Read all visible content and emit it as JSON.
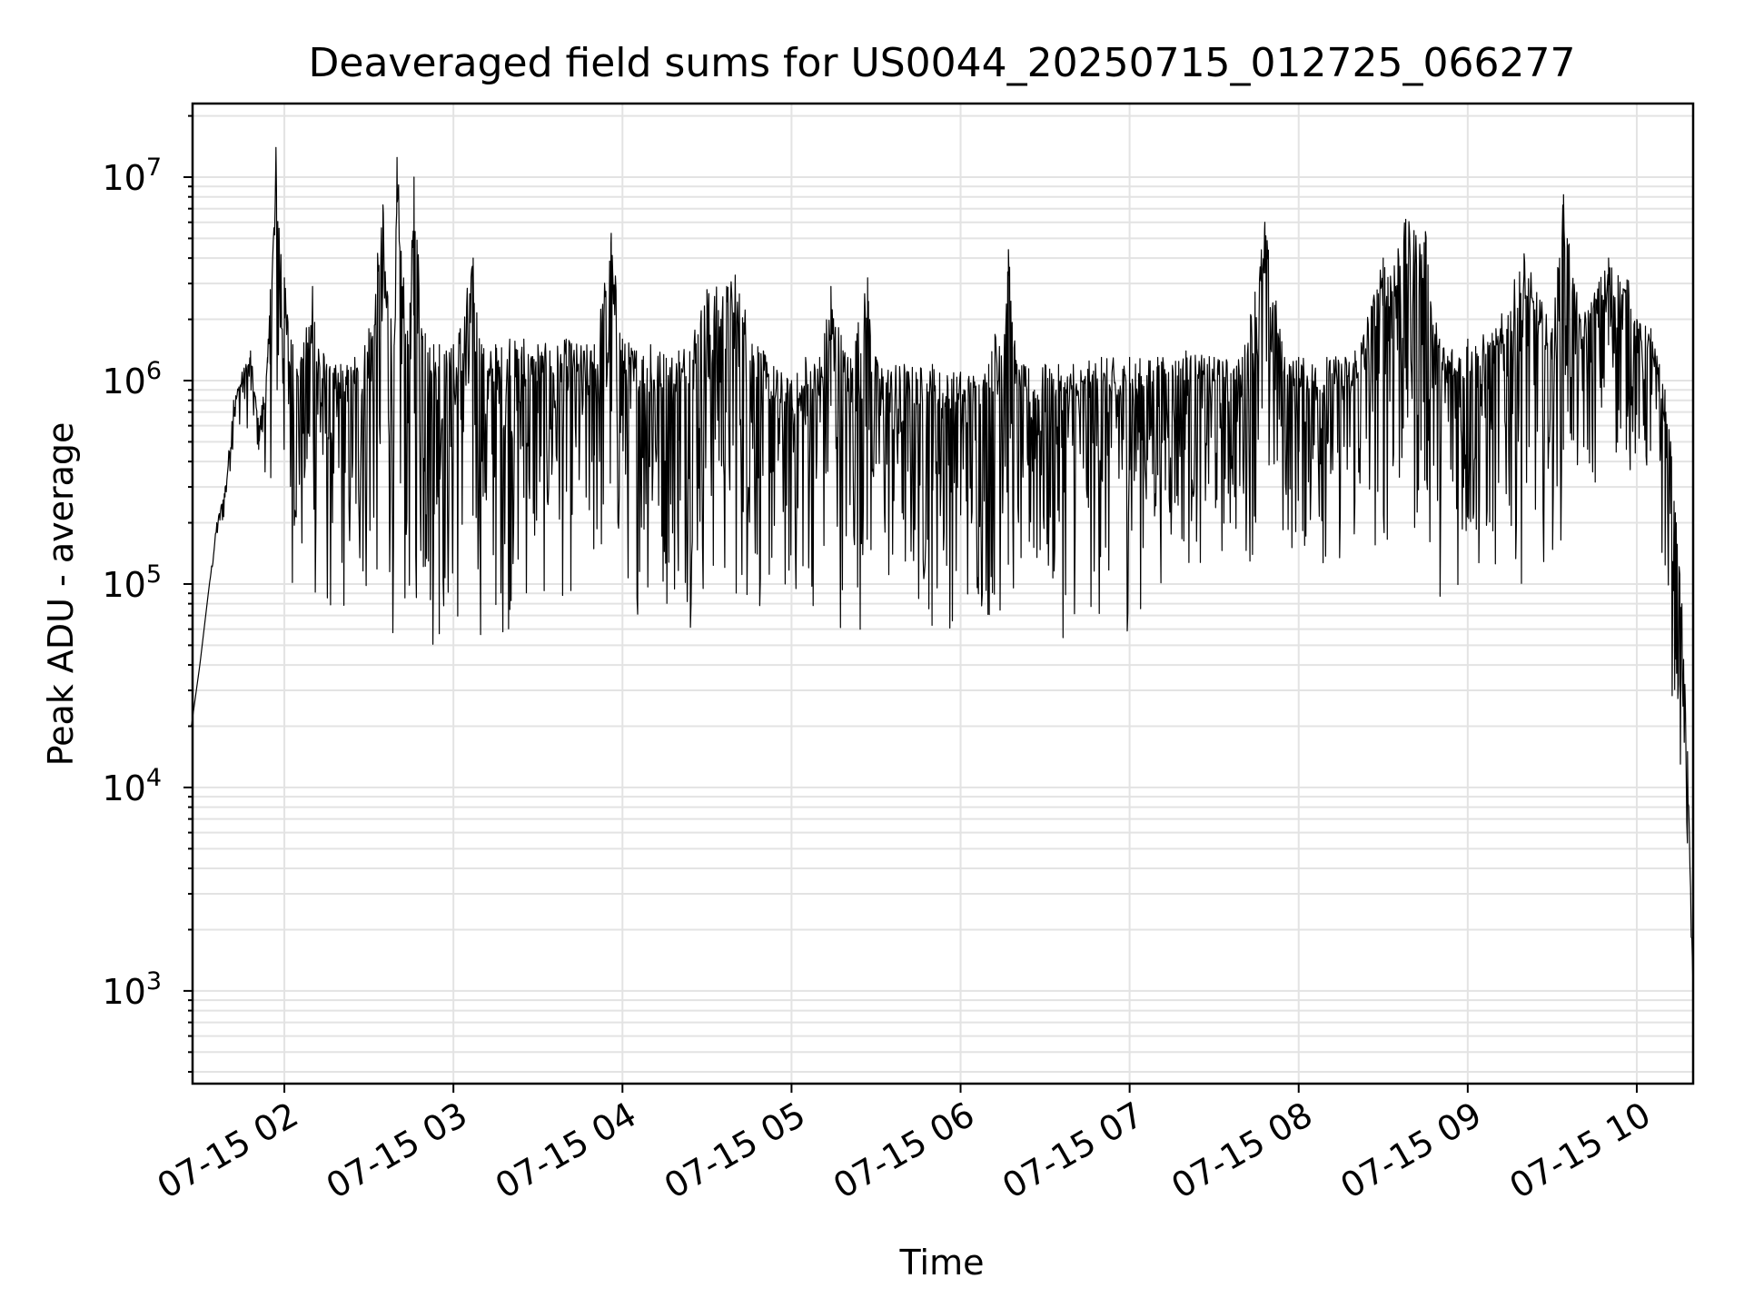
{
  "chart_data": {
    "type": "line",
    "title": "Deaveraged field sums for US0044_20250715_012725_066277",
    "xlabel": "Time",
    "ylabel": "Peak ADU - average",
    "yscale": "log",
    "ylim": [
      350,
      23000000
    ],
    "xlim": [
      "07-15 01:27:25",
      "07-15 10:20:00"
    ],
    "grid": true,
    "legend": "none",
    "line_color": "#000000",
    "x_ticks": [
      "07-15 02",
      "07-15 03",
      "07-15 04",
      "07-15 05",
      "07-15 06",
      "07-15 07",
      "07-15 08",
      "07-15 09",
      "07-15 10"
    ],
    "y_ticks": [
      {
        "value": 1000,
        "label": "10",
        "exp": "3"
      },
      {
        "value": 10000,
        "label": "10",
        "exp": "4"
      },
      {
        "value": 100000,
        "label": "10",
        "exp": "5"
      },
      {
        "value": 1000000,
        "label": "10",
        "exp": "6"
      },
      {
        "value": 10000000,
        "label": "10",
        "exp": "7"
      }
    ],
    "x": [
      "07-15 01:27",
      "07-15 01:30",
      "07-15 01:33",
      "07-15 01:36",
      "07-15 01:39",
      "07-15 01:42",
      "07-15 01:45",
      "07-15 01:48",
      "07-15 01:51",
      "07-15 01:54",
      "07-15 01:55",
      "07-15 01:57",
      "07-15 02:00",
      "07-15 02:03",
      "07-15 02:06",
      "07-15 02:10",
      "07-15 02:15",
      "07-15 02:20",
      "07-15 02:25",
      "07-15 02:30",
      "07-15 02:35",
      "07-15 02:39",
      "07-15 02:40",
      "07-15 02:44",
      "07-15 02:46",
      "07-15 02:50",
      "07-15 02:53",
      "07-15 02:55",
      "07-15 03:00",
      "07-15 03:07",
      "07-15 03:10",
      "07-15 03:15",
      "07-15 03:20",
      "07-15 03:25",
      "07-15 03:30",
      "07-15 03:40",
      "07-15 03:50",
      "07-15 03:56",
      "07-15 04:00",
      "07-15 04:10",
      "07-15 04:20",
      "07-15 04:30",
      "07-15 04:40",
      "07-15 04:50",
      "07-15 05:00",
      "07-15 05:05",
      "07-15 05:10",
      "07-15 05:14",
      "07-15 05:20",
      "07-15 05:27",
      "07-15 05:30",
      "07-15 05:40",
      "07-15 05:50",
      "07-15 06:00",
      "07-15 06:10",
      "07-15 06:17",
      "07-15 06:20",
      "07-15 06:30",
      "07-15 06:40",
      "07-15 06:50",
      "07-15 07:00",
      "07-15 07:10",
      "07-15 07:20",
      "07-15 07:30",
      "07-15 07:40",
      "07-15 07:48",
      "07-15 07:55",
      "07-15 08:00",
      "07-15 08:10",
      "07-15 08:20",
      "07-15 08:30",
      "07-15 08:38",
      "07-15 08:45",
      "07-15 08:50",
      "07-15 09:00",
      "07-15 09:10",
      "07-15 09:20",
      "07-15 09:30",
      "07-15 09:34",
      "07-15 09:40",
      "07-15 09:50",
      "07-15 09:57",
      "07-15 10:00",
      "07-15 10:05",
      "07-15 10:08",
      "07-15 10:10",
      "07-15 10:12",
      "07-15 10:14",
      "07-15 10:16",
      "07-15 10:18",
      "07-15 10:20"
    ],
    "upper": [
      20000,
      40000,
      90000,
      200000,
      300000,
      800000,
      1100000,
      1400000,
      600000,
      1300000,
      2800000,
      14000000,
      3200000,
      1500000,
      1300000,
      2900000,
      1200000,
      1200000,
      1300000,
      1800000,
      7300000,
      1500000,
      12500000,
      1500000,
      10000000,
      1700000,
      1500000,
      1500000,
      1500000,
      4000000,
      1500000,
      1500000,
      1600000,
      1600000,
      1500000,
      1600000,
      1500000,
      5300000,
      1600000,
      1500000,
      1400000,
      2800000,
      3300000,
      1400000,
      1000000,
      1300000,
      1300000,
      2900000,
      1300000,
      3200000,
      1300000,
      1200000,
      1200000,
      1100000,
      1200000,
      4400000,
      1200000,
      1200000,
      1200000,
      1300000,
      1300000,
      1300000,
      1400000,
      1300000,
      1300000,
      6000000,
      1300000,
      1300000,
      1300000,
      1400000,
      4000000,
      6200000,
      5400000,
      1600000,
      1600000,
      1800000,
      4200000,
      1800000,
      8200000,
      2000000,
      4000000,
      3100000,
      2000000,
      1800000,
      1200000,
      900000,
      500000,
      200000,
      80000,
      15000,
      1000
    ],
    "lower": [
      20000,
      40000,
      90000,
      150000,
      200000,
      500000,
      600000,
      500000,
      400000,
      300000,
      300000,
      200000,
      150000,
      80000,
      60000,
      50000,
      45000,
      50000,
      50000,
      50000,
      50000,
      48000,
      50000,
      40000,
      42000,
      38000,
      35000,
      38000,
      36000,
      40000,
      45000,
      45000,
      50000,
      55000,
      60000,
      70000,
      70000,
      70000,
      70000,
      60000,
      60000,
      55000,
      55000,
      55000,
      55000,
      60000,
      65000,
      55000,
      55000,
      50000,
      60000,
      55000,
      50000,
      55000,
      50000,
      50000,
      55000,
      50000,
      50000,
      50000,
      50000,
      90000,
      100000,
      100000,
      120000,
      120000,
      120000,
      110000,
      100000,
      100000,
      110000,
      110000,
      100000,
      80000,
      70000,
      80000,
      100000,
      120000,
      150000,
      200000,
      300000,
      300000,
      300000,
      200000,
      120000,
      60000,
      30000,
      15000,
      10000,
      3000,
      1000
    ]
  }
}
